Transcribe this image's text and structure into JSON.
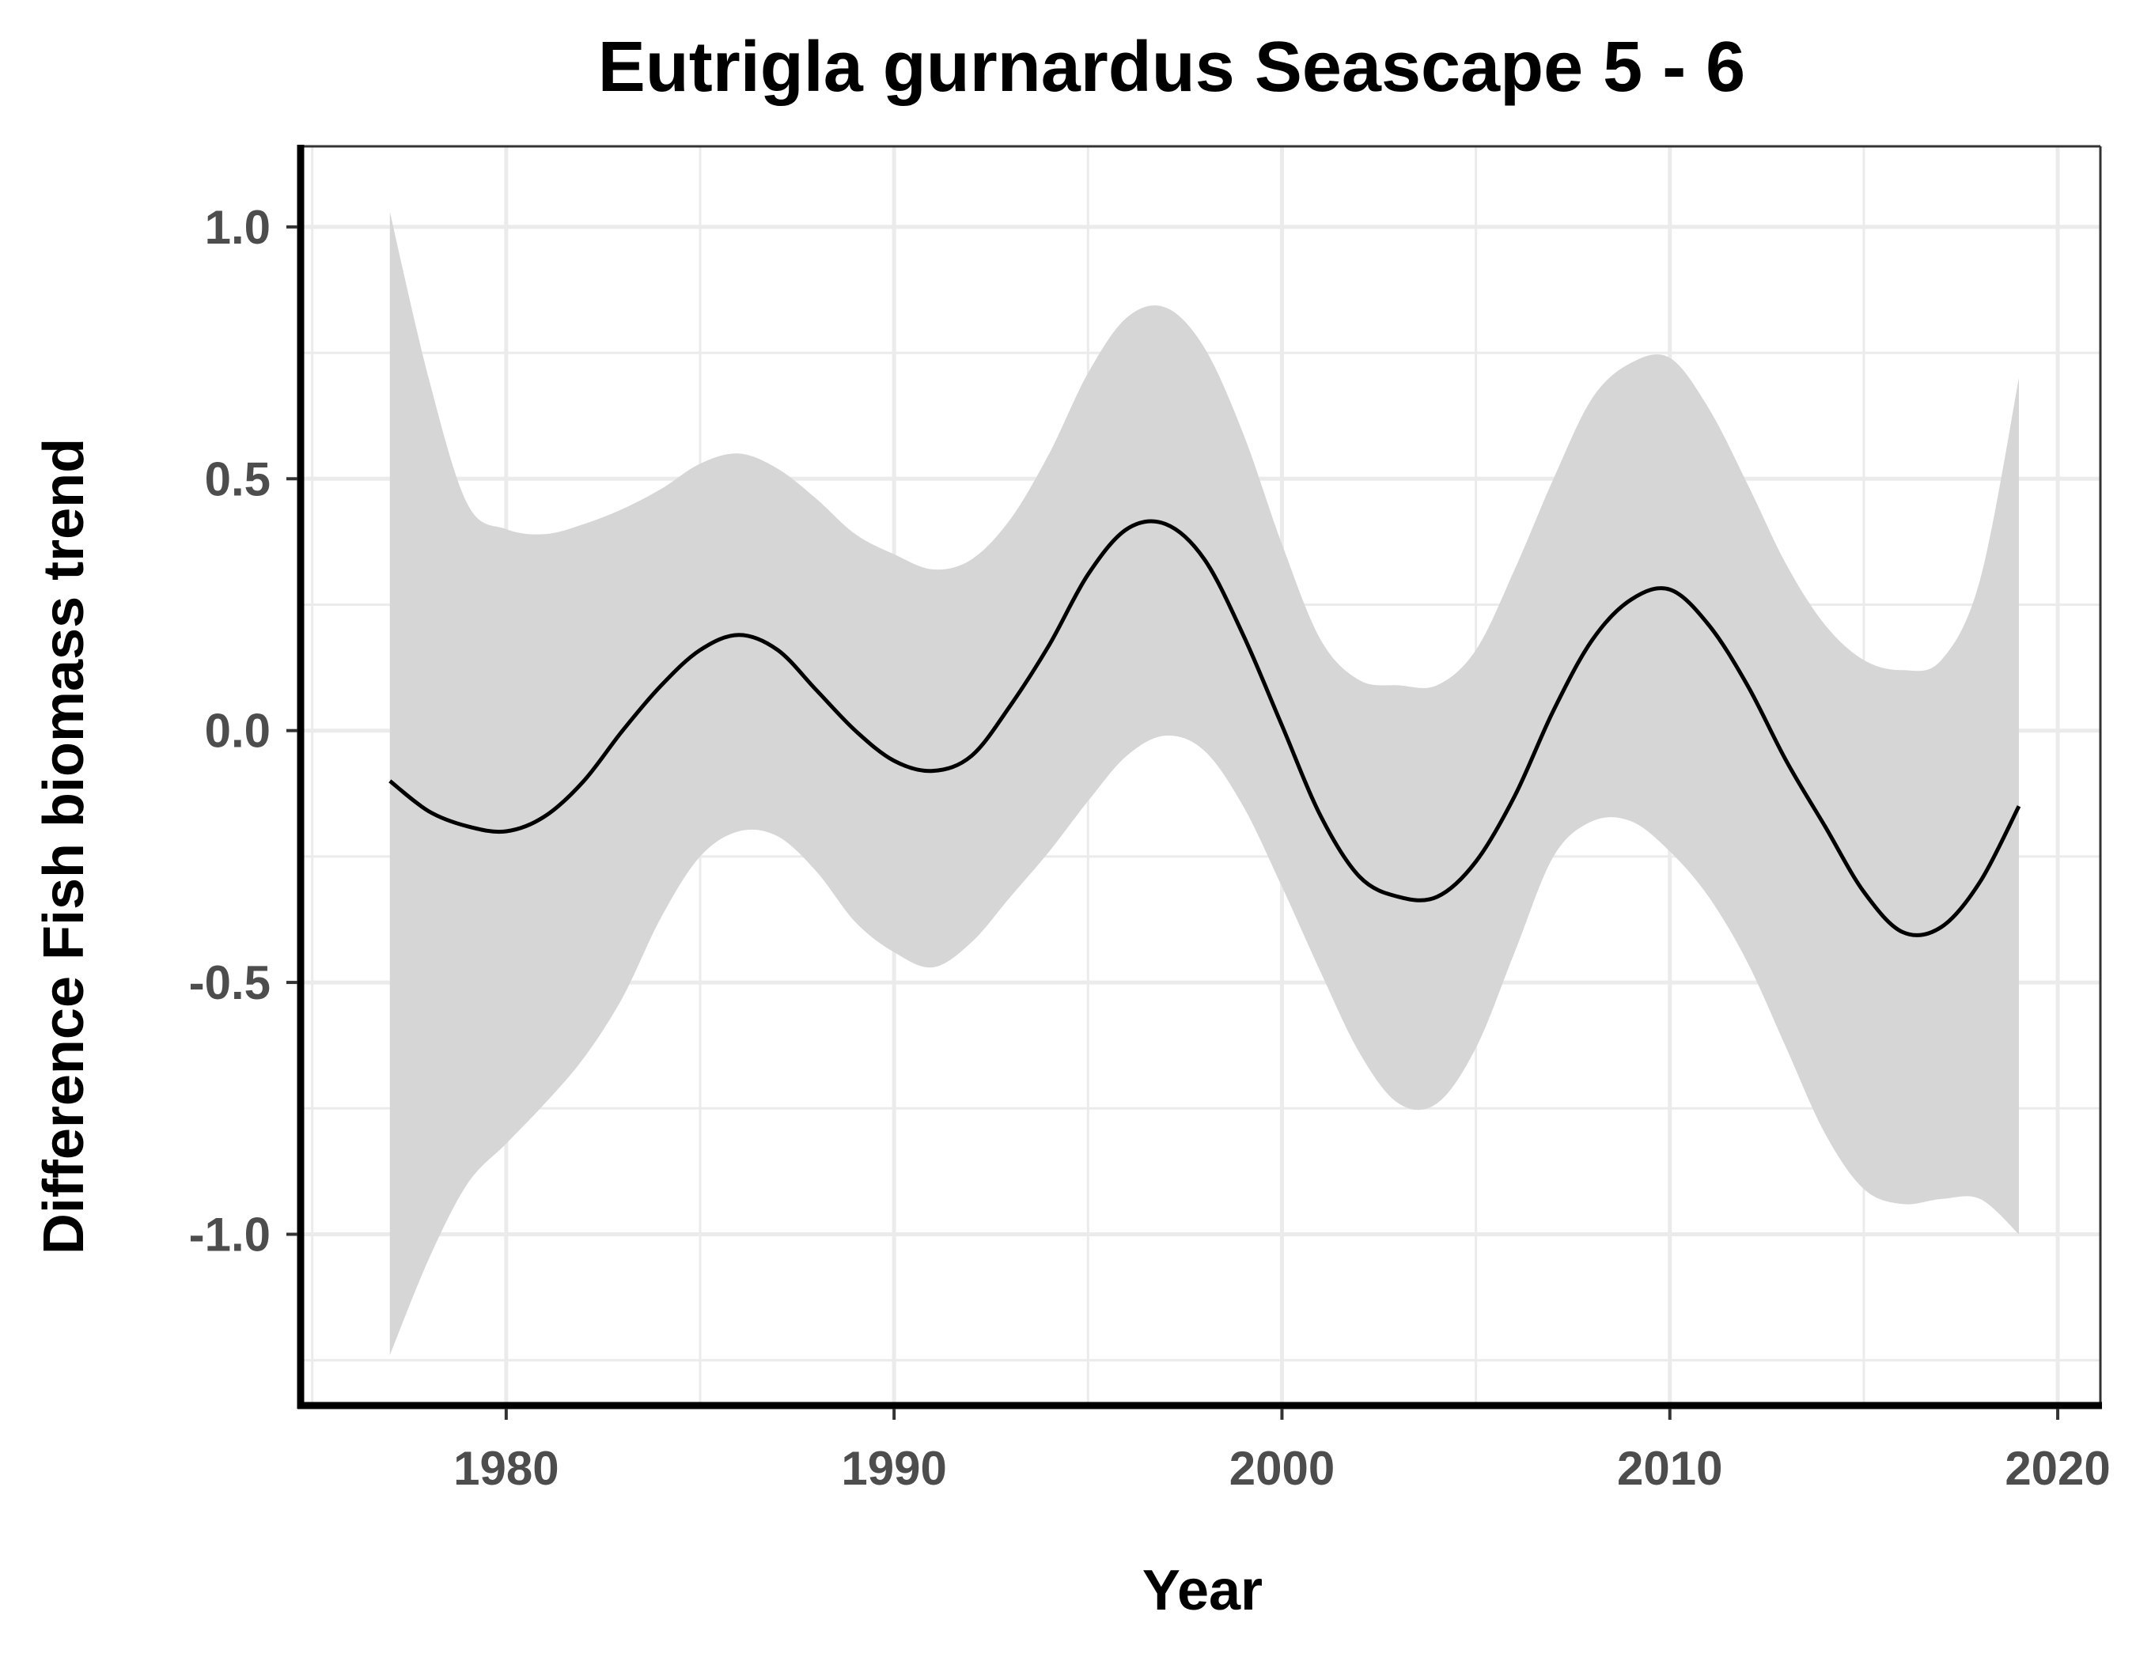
{
  "chart_data": {
    "type": "line",
    "title": "Eutrigla gurnardus Seascape 5 - 6",
    "xlabel": "Year",
    "ylabel": "Difference Fish biomass trend",
    "xlim": [
      1974.7,
      2021.1
    ],
    "ylim": [
      -1.34,
      1.16
    ],
    "x_ticks": [
      1980,
      1990,
      2000,
      2010,
      2020
    ],
    "x_tick_labels": [
      "1980",
      "1990",
      "2000",
      "2010",
      "2020"
    ],
    "y_ticks": [
      1.0,
      0.5,
      0.0,
      -0.5,
      -1.0
    ],
    "y_tick_labels": [
      "1.0",
      "0.5",
      "0.0",
      "-0.5",
      "-1.0"
    ],
    "grid": true,
    "legend": "none",
    "colors": {
      "line": "#000000",
      "band": "#d6d6d6",
      "grid": "#ebebeb",
      "axis": "#000000",
      "tick_text": "#4d4d4d"
    },
    "series": [
      {
        "x": [
          1977,
          1978,
          1979,
          1980,
          1981,
          1982,
          1983,
          1984,
          1985,
          1986,
          1987,
          1988,
          1989,
          1990,
          1991,
          1992,
          1993,
          1994,
          1995,
          1996,
          1997,
          1998,
          1999,
          2000,
          2001,
          2002,
          2003,
          2004,
          2005,
          2006,
          2007,
          2008,
          2009,
          2010,
          2011,
          2012,
          2013,
          2014,
          2015,
          2016,
          2017,
          2018,
          2019
        ],
        "y": [
          -0.1,
          -0.16,
          -0.19,
          -0.2,
          -0.17,
          -0.1,
          0.0,
          0.09,
          0.16,
          0.19,
          0.16,
          0.08,
          0.0,
          -0.06,
          -0.08,
          -0.05,
          0.05,
          0.17,
          0.31,
          0.4,
          0.41,
          0.34,
          0.19,
          0.01,
          -0.17,
          -0.29,
          -0.33,
          -0.33,
          -0.26,
          -0.13,
          0.04,
          0.18,
          0.26,
          0.28,
          0.21,
          0.09,
          -0.06,
          -0.19,
          -0.32,
          -0.4,
          -0.39,
          -0.3,
          -0.15
        ],
        "lower": [
          -1.24,
          -1.05,
          -0.9,
          -0.82,
          -0.74,
          -0.65,
          -0.53,
          -0.37,
          -0.25,
          -0.2,
          -0.21,
          -0.28,
          -0.38,
          -0.44,
          -0.47,
          -0.42,
          -0.33,
          -0.24,
          -0.14,
          -0.05,
          -0.01,
          -0.04,
          -0.15,
          -0.31,
          -0.48,
          -0.64,
          -0.74,
          -0.74,
          -0.63,
          -0.44,
          -0.25,
          -0.18,
          -0.18,
          -0.24,
          -0.33,
          -0.46,
          -0.63,
          -0.8,
          -0.91,
          -0.94,
          -0.93,
          -0.93,
          -1.0
        ],
        "upper": [
          1.03,
          0.7,
          0.45,
          0.4,
          0.39,
          0.41,
          0.44,
          0.48,
          0.53,
          0.55,
          0.52,
          0.46,
          0.39,
          0.35,
          0.32,
          0.34,
          0.42,
          0.55,
          0.71,
          0.82,
          0.84,
          0.76,
          0.59,
          0.37,
          0.18,
          0.1,
          0.09,
          0.09,
          0.16,
          0.32,
          0.5,
          0.66,
          0.73,
          0.74,
          0.64,
          0.49,
          0.33,
          0.21,
          0.14,
          0.12,
          0.14,
          0.3,
          0.7
        ]
      }
    ]
  }
}
